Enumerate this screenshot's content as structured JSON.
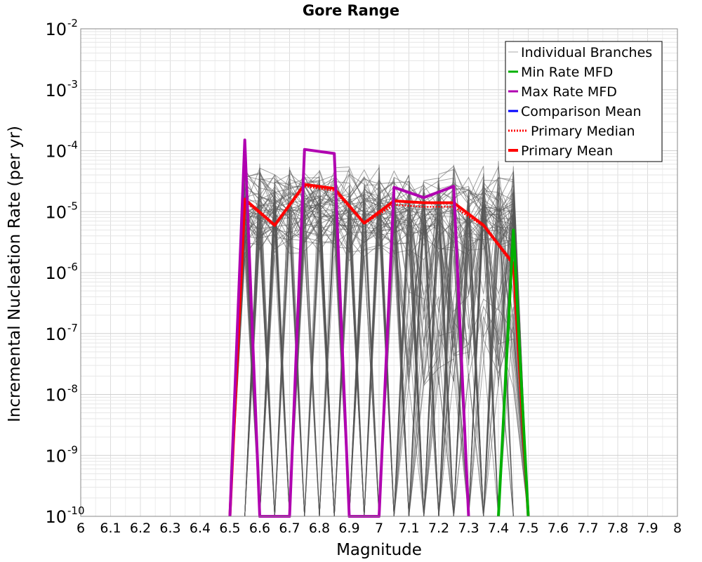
{
  "chart_data": {
    "type": "line",
    "title": "Gore Range",
    "xlabel": "Magnitude",
    "ylabel": "Incremental Nucleation Rate (per yr)",
    "xlim": [
      6,
      8
    ],
    "ylim_log10": [
      -10,
      -2
    ],
    "x_ticks": [
      "6",
      "6.1",
      "6.2",
      "6.3",
      "6.4",
      "6.5",
      "6.6",
      "6.7",
      "6.8",
      "6.9",
      "7",
      "7.1",
      "7.2",
      "7.3",
      "7.4",
      "7.5",
      "7.6",
      "7.7",
      "7.8",
      "7.9",
      "8"
    ],
    "y_ticks": [
      {
        "base": "10",
        "exp": "-2",
        "value": -2
      },
      {
        "base": "10",
        "exp": "-3",
        "value": -3
      },
      {
        "base": "10",
        "exp": "-4",
        "value": -4
      },
      {
        "base": "10",
        "exp": "-5",
        "value": -5
      },
      {
        "base": "10",
        "exp": "-6",
        "value": -6
      },
      {
        "base": "10",
        "exp": "-7",
        "value": -7
      },
      {
        "base": "10",
        "exp": "-8",
        "value": -8
      },
      {
        "base": "10",
        "exp": "-9",
        "value": -9
      },
      {
        "base": "10",
        "exp": "-10",
        "value": -10
      }
    ],
    "grid": true,
    "legend_position": "top-right",
    "legend": [
      {
        "label": "Individual Branches",
        "style": "thin-gray"
      },
      {
        "label": "Min Rate MFD",
        "style": "green"
      },
      {
        "label": "Max Rate MFD",
        "style": "magenta"
      },
      {
        "label": "Comparison Mean",
        "style": "blue"
      },
      {
        "label": "Primary Median",
        "style": "red-dotted"
      },
      {
        "label": "Primary Mean",
        "style": "red"
      }
    ],
    "series": [
      {
        "name": "Primary Mean",
        "color": "#ff0000",
        "dash": false,
        "x": [
          6.5,
          6.55,
          6.65,
          6.75,
          6.85,
          6.95,
          7.05,
          7.15,
          7.25,
          7.35,
          7.45,
          7.5
        ],
        "y": [
          -10,
          1.6e-05,
          6e-06,
          2.8e-05,
          2.4e-05,
          6.5e-06,
          1.5e-05,
          1.4e-05,
          1.4e-05,
          6e-06,
          1.4e-06,
          -10
        ]
      },
      {
        "name": "Primary Median",
        "color": "#ff0000",
        "dash": true,
        "x": [
          6.5,
          6.55,
          6.65,
          6.75,
          6.85,
          6.95,
          7.05,
          7.15,
          7.25,
          7.35,
          7.45,
          7.5
        ],
        "y": [
          -10,
          1.5e-05,
          5.8e-06,
          2.6e-05,
          2.2e-05,
          6.3e-06,
          1.3e-05,
          1.2e-05,
          1.2e-05,
          5.8e-06,
          1.3e-06,
          -10
        ]
      },
      {
        "name": "Max Rate MFD",
        "color": "#b000b0",
        "dash": false,
        "x": [
          6.5,
          6.55,
          6.6,
          6.7,
          6.75,
          6.85,
          6.9,
          7.0,
          7.05,
          7.15,
          7.25,
          7.3
        ],
        "y": [
          -10,
          0.00015,
          -10,
          -10,
          0.000105,
          9e-05,
          -10,
          -10,
          2.5e-05,
          1.7e-05,
          2.6e-05,
          -10
        ]
      },
      {
        "name": "Min Rate MFD",
        "color": "#00b000",
        "dash": false,
        "x": [
          7.4,
          7.45,
          7.5
        ],
        "y": [
          -10,
          5e-06,
          -10
        ]
      }
    ]
  }
}
